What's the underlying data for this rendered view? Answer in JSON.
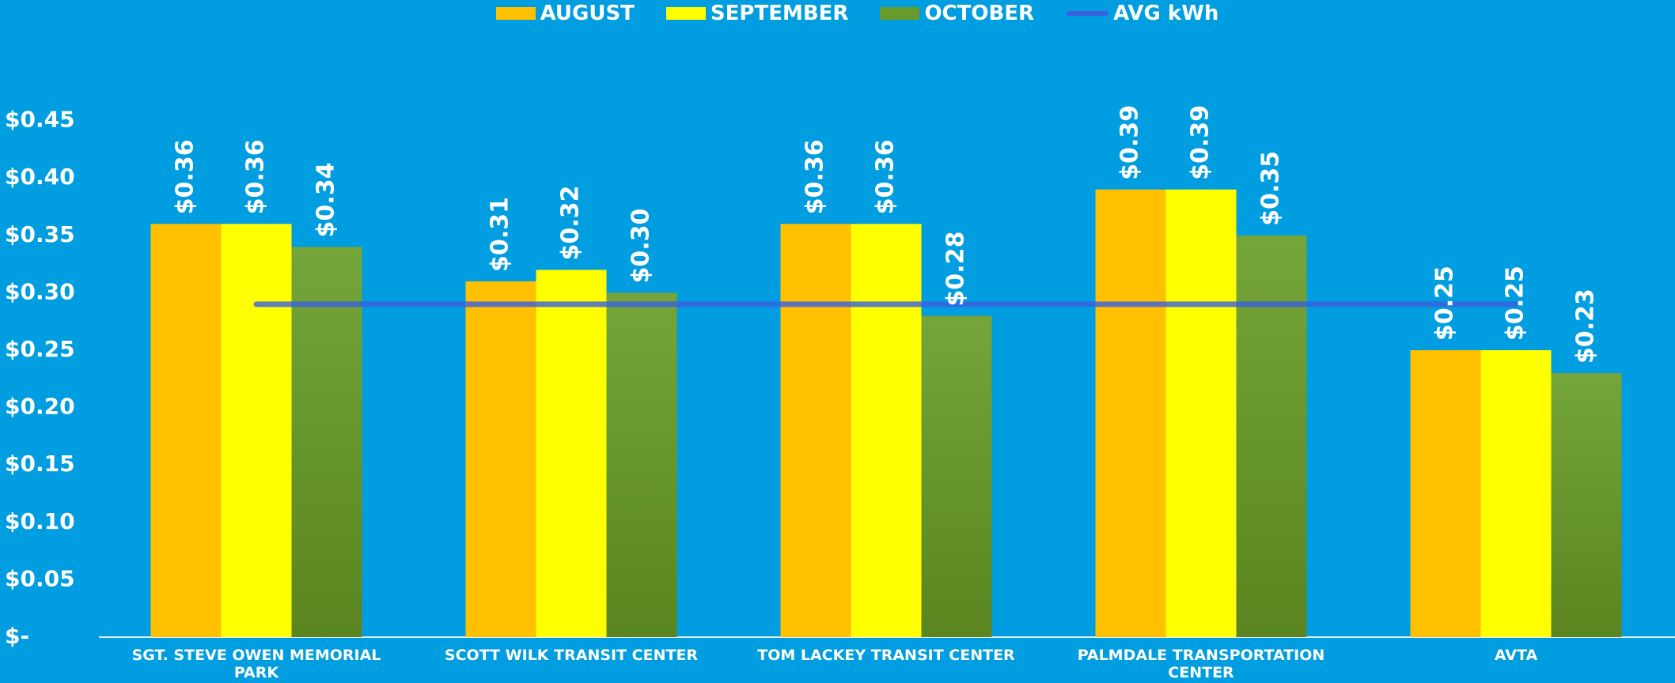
{
  "chart_data": {
    "type": "bar",
    "categories": [
      "SGT. STEVE OWEN MEMORIAL PARK",
      "SCOTT WILK TRANSIT CENTER",
      "TOM LACKEY TRANSIT CENTER",
      "PALMDALE TRANSPORTATION CENTER",
      "AVTA"
    ],
    "series": [
      {
        "name": "AUGUST",
        "color": "#ffc000",
        "values": [
          0.36,
          0.31,
          0.36,
          0.39,
          0.25
        ],
        "value_labels": [
          "$0.36",
          "$0.31",
          "$0.36",
          "$0.39",
          "$0.25"
        ]
      },
      {
        "name": "SEPTEMBER",
        "color": "#ffff00",
        "values": [
          0.36,
          0.32,
          0.36,
          0.39,
          0.25
        ],
        "value_labels": [
          "$0.36",
          "$0.32",
          "$0.36",
          "$0.39",
          "$0.25"
        ]
      },
      {
        "name": "OCTOBER",
        "color": "#6a9a2c",
        "values": [
          0.34,
          0.3,
          0.28,
          0.35,
          0.23
        ],
        "value_labels": [
          "$0.34",
          "$0.30",
          "$0.28",
          "$0.35",
          "$0.23"
        ]
      },
      {
        "name": "AVG kWh",
        "type": "line",
        "color": "#3a5fe0",
        "values": [
          0.29,
          0.29,
          0.29,
          0.29,
          0.29
        ]
      }
    ],
    "ylim": [
      0,
      0.5
    ],
    "yticks": [
      {
        "value": 0,
        "label": "$-"
      },
      {
        "value": 0.05,
        "label": "$0.05"
      },
      {
        "value": 0.1,
        "label": "$0.10"
      },
      {
        "value": 0.15,
        "label": "$0.15"
      },
      {
        "value": 0.2,
        "label": "$0.20"
      },
      {
        "value": 0.25,
        "label": "$0.25"
      },
      {
        "value": 0.3,
        "label": "$0.30"
      },
      {
        "value": 0.35,
        "label": "$0.35"
      },
      {
        "value": 0.4,
        "label": "$0.40"
      },
      {
        "value": 0.45,
        "label": "$0.45"
      }
    ],
    "grid": false,
    "legend": "top"
  }
}
